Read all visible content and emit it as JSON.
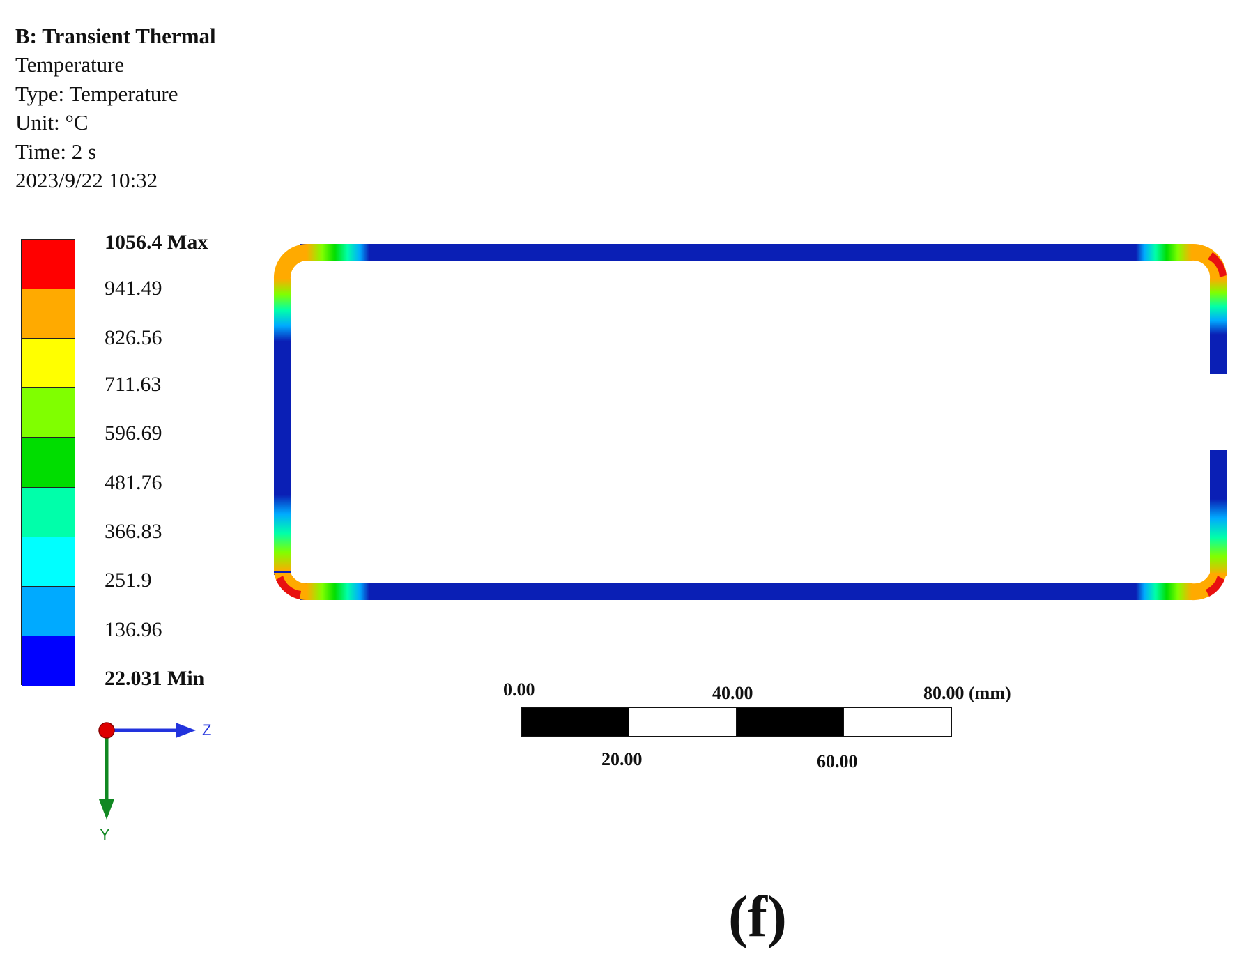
{
  "header": {
    "title": "B: Transient Thermal",
    "result": "Temperature",
    "type": "Type: Temperature",
    "unit": "Unit:  °C",
    "time": "Time:  2 s",
    "date": "2023/9/22  10:32"
  },
  "legend": {
    "max_label": "1056.4 Max",
    "min_label": "22.031 Min",
    "levels": [
      "941.49",
      "826.56",
      "711.63",
      "596.69",
      "481.76",
      "366.83",
      "251.9",
      "136.96"
    ],
    "colors": [
      "#ff0000",
      "#ffaa00",
      "#ffff00",
      "#80ff00",
      "#00dd00",
      "#00ffaa",
      "#00ffff",
      "#00aaff",
      "#0000ff"
    ]
  },
  "axes": {
    "z_label": "Z",
    "y_label": "Y",
    "z_color": "#2233dd",
    "y_color": "#118822",
    "origin_color": "#dd0000"
  },
  "scale_bar": {
    "top_labels": [
      "0.00",
      "40.00",
      "80.00 (mm)"
    ],
    "bottom_labels": [
      "20.00",
      "60.00"
    ]
  },
  "model": {
    "body_color": "#0a1fb5",
    "hot_color": "#e81010"
  },
  "panel_label": "(f)"
}
